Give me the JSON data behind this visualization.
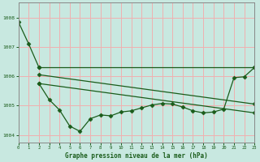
{
  "xlabel": "Graphe pression niveau de la mer (hPa)",
  "bg_color": "#c8e8e0",
  "grid_color": "#f0b0b0",
  "line_color": "#1a5c1a",
  "xlim": [
    0,
    23
  ],
  "ylim": [
    1003.75,
    1008.5
  ],
  "yticks": [
    1004,
    1005,
    1006,
    1007,
    1008
  ],
  "xticks": [
    0,
    1,
    2,
    3,
    4,
    5,
    6,
    7,
    8,
    9,
    10,
    11,
    12,
    13,
    14,
    15,
    16,
    17,
    18,
    19,
    20,
    21,
    22,
    23
  ],
  "series1_x": [
    0,
    1,
    2
  ],
  "series1_y": [
    1007.85,
    1007.1,
    1006.3
  ],
  "series2_x": [
    2,
    3,
    4,
    5,
    6,
    7,
    8,
    9,
    10,
    11,
    12,
    13,
    14,
    15,
    16,
    17,
    18,
    19,
    20,
    21,
    22,
    23
  ],
  "series2_y": [
    1005.75,
    1005.2,
    1004.85,
    1004.3,
    1004.12,
    1004.55,
    1004.68,
    1004.65,
    1004.78,
    1004.82,
    1004.92,
    1005.02,
    1005.07,
    1005.05,
    1004.95,
    1004.82,
    1004.75,
    1004.78,
    1004.88,
    1005.95,
    1005.98,
    1006.3
  ],
  "line3_x": [
    2,
    23
  ],
  "line3_y": [
    1006.3,
    1006.3
  ],
  "line4_x": [
    2,
    23
  ],
  "line4_y": [
    1006.05,
    1005.05
  ],
  "line5_x": [
    2,
    23
  ],
  "line5_y": [
    1005.75,
    1004.75
  ]
}
